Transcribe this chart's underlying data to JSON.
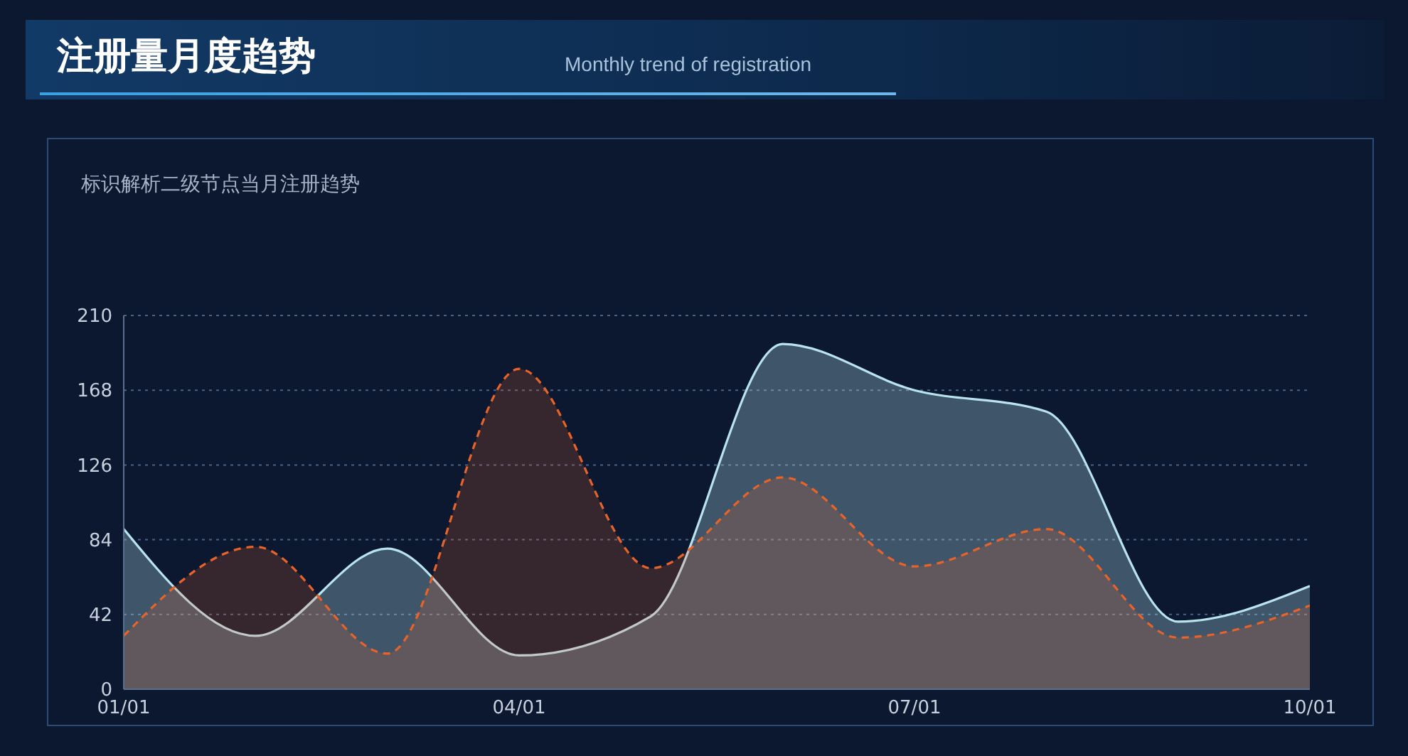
{
  "chart_data": {
    "type": "area",
    "title": "注册量月度趋势",
    "subtitle": "Monthly trend of registration",
    "annotations": [
      "标识解析二级节点当月注册趋势"
    ],
    "categories": [
      "01/01",
      null,
      null,
      "04/01",
      null,
      null,
      "07/01",
      null,
      null,
      "10/01"
    ],
    "series": [
      {
        "color": "#b9e3ee",
        "line_style": "solid",
        "values": [
          90,
          30,
          79,
          19,
          41,
          194,
          168,
          156,
          38,
          58
        ]
      },
      {
        "color": "#e8632a",
        "line_style": "dashed",
        "values": [
          30,
          80,
          20,
          180,
          68,
          119,
          69,
          90,
          29,
          47
        ]
      }
    ],
    "ylim": [
      0,
      210
    ],
    "yticks": [
      0,
      42,
      84,
      126,
      168,
      210
    ],
    "grid": "y",
    "marker": "none"
  }
}
